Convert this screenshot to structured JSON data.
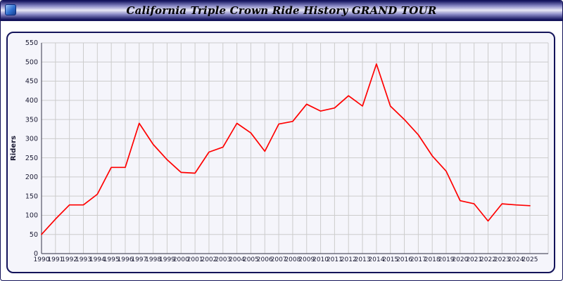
{
  "window": {
    "title": "California Triple Crown Ride History GRAND TOUR"
  },
  "colors": {
    "line": "#ff0000",
    "grid": "#cccccc",
    "axis": "#555566",
    "tick_text": "#1a1a33",
    "panel_bg": "#f5f5fb",
    "border": "#14145a"
  },
  "chart_data": {
    "type": "line",
    "title": "California Triple Crown Ride History GRAND TOUR",
    "xlabel": "",
    "ylabel": "Riders",
    "ylim": [
      0,
      550
    ],
    "ytick_step": 50,
    "grid": true,
    "legend_position": "none",
    "x": [
      1990,
      1991,
      1992,
      1993,
      1994,
      1995,
      1996,
      1997,
      1998,
      1999,
      2000,
      2001,
      2002,
      2003,
      2004,
      2005,
      2006,
      2007,
      2008,
      2009,
      2010,
      2011,
      2012,
      2013,
      2014,
      2015,
      2016,
      2017,
      2018,
      2019,
      2020,
      2021,
      2022,
      2023,
      2024,
      2025
    ],
    "series": [
      {
        "name": "Riders",
        "color": "#ff0000",
        "values": [
          50,
          90,
          127,
          127,
          155,
          225,
          225,
          340,
          285,
          245,
          212,
          210,
          265,
          278,
          340,
          315,
          267,
          338,
          345,
          390,
          372,
          380,
          412,
          385,
          495,
          385,
          350,
          310,
          255,
          215,
          138,
          130,
          85,
          130,
          127,
          125
        ]
      }
    ]
  }
}
